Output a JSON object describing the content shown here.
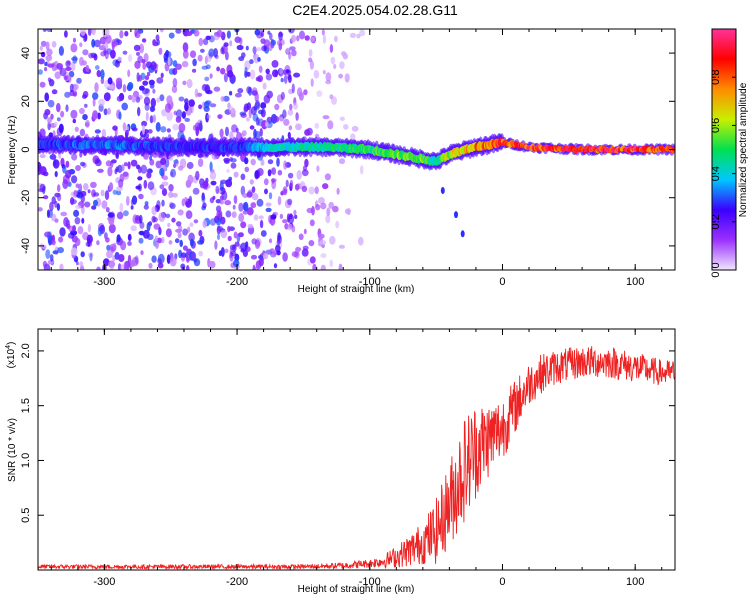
{
  "figure_title": "C2E4.2025.054.02.28.G11",
  "chart_data": [
    {
      "type": "heatmap",
      "xlabel": "Height of straight line (km)",
      "ylabel": "Frequency (Hz)",
      "xlim": [
        -350,
        130
      ],
      "ylim": [
        -50,
        50
      ],
      "x_ticks": [
        -300,
        -200,
        -100,
        0,
        100
      ],
      "x_tick_labels": [
        "-300",
        "-200",
        "-100",
        "0",
        "100"
      ],
      "y_ticks": [
        -40,
        -20,
        0,
        20,
        40
      ],
      "y_tick_labels": [
        "-40",
        "-20",
        "0",
        "20",
        "40"
      ],
      "colorbar": {
        "label": "Normalized spectral amplitude",
        "range": [
          0,
          1
        ],
        "ticks": [
          0.0,
          0.2,
          0.4,
          0.6,
          0.8
        ],
        "tick_labels": [
          "0.0",
          "0.2",
          "0.4",
          "0.6",
          "0.8"
        ],
        "colors": [
          "#f0e6ff",
          "#9b30ff",
          "#3a00ff",
          "#00c8ff",
          "#00e050",
          "#c8f000",
          "#ff8c00",
          "#ff0000",
          "#ff3399"
        ]
      },
      "ridge": {
        "description_points_x": [
          -350,
          -300,
          -250,
          -200,
          -170,
          -130,
          -100,
          -80,
          -60,
          -50,
          -40,
          -20,
          0,
          20,
          60,
          100,
          130
        ],
        "frequency_hz": [
          2,
          2,
          1,
          1,
          1,
          1,
          0,
          -2,
          -4,
          -5,
          -2,
          1,
          3,
          1,
          0,
          0,
          0
        ],
        "peak_amplitude": [
          0.3,
          0.35,
          0.3,
          0.3,
          0.45,
          0.5,
          0.55,
          0.6,
          0.6,
          0.5,
          0.7,
          0.85,
          0.9,
          0.95,
          0.95,
          0.95,
          0.95
        ]
      },
      "noise_region_x": [
        -350,
        -120
      ],
      "noise_region_freq_hz": [
        -50,
        50
      ],
      "tail_points": [
        {
          "x": -45,
          "y": -17
        },
        {
          "x": -35,
          "y": -27
        },
        {
          "x": -30,
          "y": -35
        }
      ]
    },
    {
      "type": "line",
      "xlabel": "Height of straight line (km)",
      "ylabel": "SNR (10 * v/v)",
      "y_multiplier_label": "(x10",
      "y_multiplier_exponent": "4",
      "y_multiplier_suffix": ")",
      "xlim": [
        -350,
        130
      ],
      "ylim": [
        0,
        2.2
      ],
      "x_ticks": [
        -300,
        -200,
        -100,
        0,
        100
      ],
      "x_tick_labels": [
        "-300",
        "-200",
        "-100",
        "0",
        "100"
      ],
      "y_ticks": [
        0.5,
        1.0,
        1.5,
        2.0
      ],
      "y_tick_labels": [
        "0.5",
        "1.0",
        "1.5",
        "2.0"
      ],
      "color": "#ee2222",
      "series": [
        {
          "x": [
            -350,
            -300,
            -250,
            -200,
            -150,
            -120,
            -100,
            -90,
            -80,
            -70,
            -60,
            -50,
            -40,
            -30,
            -20,
            -10,
            0,
            10,
            20,
            30,
            40,
            60,
            80,
            100,
            120,
            130
          ],
          "mean": [
            0.03,
            0.03,
            0.03,
            0.03,
            0.03,
            0.04,
            0.06,
            0.08,
            0.12,
            0.18,
            0.25,
            0.35,
            0.6,
            0.9,
            1.1,
            1.2,
            1.3,
            1.5,
            1.7,
            1.8,
            1.85,
            1.9,
            1.9,
            1.85,
            1.8,
            1.8
          ],
          "spread": [
            0.02,
            0.02,
            0.02,
            0.02,
            0.02,
            0.03,
            0.04,
            0.06,
            0.1,
            0.15,
            0.2,
            0.3,
            0.4,
            0.5,
            0.45,
            0.35,
            0.3,
            0.25,
            0.2,
            0.18,
            0.16,
            0.15,
            0.15,
            0.14,
            0.12,
            0.12
          ]
        }
      ]
    }
  ]
}
